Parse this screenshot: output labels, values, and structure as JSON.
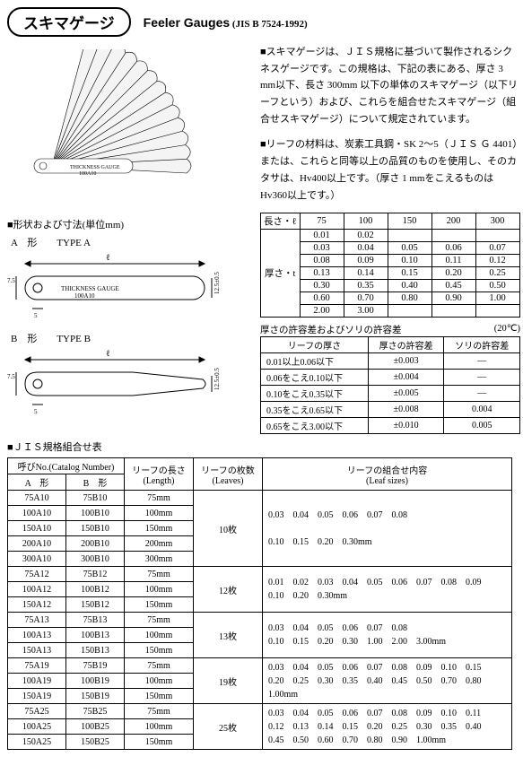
{
  "header": {
    "pill": "スキマゲージ",
    "eng": "Feeler Gauges",
    "jis": "(JIS B 7524-1992)"
  },
  "para1": "■スキマゲージは、ＪＩＳ規格に基づいて製作されるシクネスゲージです。この規格は、下記の表にある、厚さ 3 mm以下、長さ 300mm 以下の単体のスキマゲージ（以下リーフという）および、これらを組合せたスキマゲージ（組合せスキマゲージ）について規定されています。",
  "para2": "■リーフの材料は、炭素工具鋼・SK 2～5（ＪＩＳ Ｇ 4401）または、これらと同等以上の品質のものを使用し、そのカタサは、Hv400以上です。（厚さ 1 mmをこえるものはHv360以上です。）",
  "shape_heading": "■形状および寸法(単位mm)",
  "typeA": "A　形　　TYPE A",
  "typeB": "B　形　　TYPE B",
  "thick_table": {
    "h_len": "長さ・ℓ",
    "h_thk": "厚さ・t",
    "lens": [
      "75",
      "100",
      "150",
      "200",
      "300"
    ],
    "rows": [
      [
        "0.01",
        "0.02",
        "",
        "",
        ""
      ],
      [
        "0.03",
        "0.04",
        "0.05",
        "0.06",
        "0.07"
      ],
      [
        "0.08",
        "0.09",
        "0.10",
        "0.11",
        "0.12"
      ],
      [
        "0.13",
        "0.14",
        "0.15",
        "0.20",
        "0.25"
      ],
      [
        "0.30",
        "0.35",
        "0.40",
        "0.45",
        "0.50"
      ],
      [
        "0.60",
        "0.70",
        "0.80",
        "0.90",
        "1.00"
      ],
      [
        "2.00",
        "3.00",
        "",
        "",
        ""
      ]
    ]
  },
  "tol_table": {
    "title": "厚さの許容差およびソリの許容差",
    "temp": "(20℃)",
    "h1": "リーフの厚さ",
    "h2": "厚さの許容差",
    "h3": "ソリの許容差",
    "rows": [
      [
        "0.01以上0.06以下",
        "±0.003",
        "―"
      ],
      [
        "0.06をこえ0.10以下",
        "±0.004",
        "―"
      ],
      [
        "0.10をこえ0.35以下",
        "±0.005",
        "―"
      ],
      [
        "0.35をこえ0.65以下",
        "±0.008",
        "0.004"
      ],
      [
        "0.65をこえ3.00以下",
        "±0.010",
        "0.005"
      ]
    ]
  },
  "combo_heading": "■ＪＩＳ規格組合せ表",
  "combo_table": {
    "h_cat": "呼びNo.(Catalog  Number)",
    "h_a": "A　形",
    "h_b": "B　形",
    "h_len": "リーフの長さ",
    "h_len2": "(Length)",
    "h_leaves": "リーフの枚数",
    "h_leaves2": "(Leaves)",
    "h_sizes": "リーフの組合せ内容",
    "h_sizes2": "(Leaf sizes)",
    "groups": [
      {
        "leaves": "10枚",
        "rows": [
          [
            "75A10",
            "75B10",
            "75mm"
          ],
          [
            "100A10",
            "100B10",
            "100mm"
          ],
          [
            "150A10",
            "150B10",
            "150mm"
          ],
          [
            "200A10",
            "200B10",
            "200mm"
          ],
          [
            "300A10",
            "300B10",
            "300mm"
          ]
        ],
        "sizes": "0.03　0.04　0.05　0.06　0.07　0.08\n\n0.10　0.15　0.20　0.30mm"
      },
      {
        "leaves": "12枚",
        "rows": [
          [
            "75A12",
            "75B12",
            "75mm"
          ],
          [
            "100A12",
            "100B12",
            "100mm"
          ],
          [
            "150A12",
            "150B12",
            "150mm"
          ]
        ],
        "sizes": "0.01　0.02　0.03　0.04　0.05　0.06　0.07　0.08　0.09\n0.10　0.20　0.30mm"
      },
      {
        "leaves": "13枚",
        "rows": [
          [
            "75A13",
            "75B13",
            "75mm"
          ],
          [
            "100A13",
            "100B13",
            "100mm"
          ],
          [
            "150A13",
            "150B13",
            "150mm"
          ]
        ],
        "sizes": "0.03　0.04　0.05　0.06　0.07　0.08\n0.10　0.15　0.20　0.30　1.00　2.00　3.00mm"
      },
      {
        "leaves": "19枚",
        "rows": [
          [
            "75A19",
            "75B19",
            "75mm"
          ],
          [
            "100A19",
            "100B19",
            "100mm"
          ],
          [
            "150A19",
            "150B19",
            "150mm"
          ]
        ],
        "sizes": "0.03　0.04　0.05　0.06　0.07　0.08　0.09　0.10　0.15\n0.20　0.25　0.30　0.35　0.40　0.45　0.50　0.70　0.80\n1.00mm"
      },
      {
        "leaves": "25枚",
        "rows": [
          [
            "75A25",
            "75B25",
            "75mm"
          ],
          [
            "100A25",
            "100B25",
            "100mm"
          ],
          [
            "150A25",
            "150B25",
            "150mm"
          ]
        ],
        "sizes": "0.03　0.04　0.05　0.06　0.07　0.08　0.09　0.10　0.11\n0.12　0.13　0.14　0.15　0.20　0.25　0.30　0.35　0.40\n0.45　0.50　0.60　0.70　0.80　0.90　1.00mm"
      }
    ]
  }
}
